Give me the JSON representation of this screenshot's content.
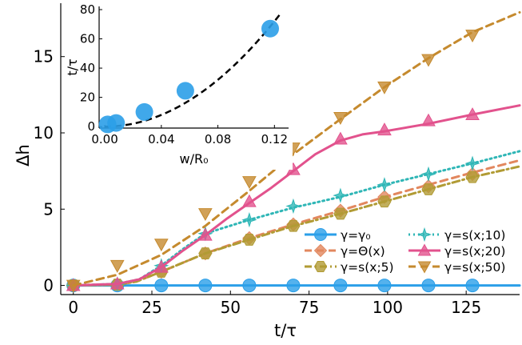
{
  "chart_data": [
    {
      "type": "line",
      "title": "",
      "xlabel": "t/τ",
      "ylabel": "Δh",
      "xlim": [
        -4,
        142
      ],
      "ylim": [
        -0.6,
        18.5
      ],
      "xticks": [
        0,
        25,
        50,
        75,
        100,
        125
      ],
      "yticks": [
        0,
        5,
        10,
        15
      ],
      "grid": false,
      "legend": {
        "placement": "bottom-right",
        "columns": 2
      },
      "series": [
        {
          "name": "γ=γ₀",
          "color": "#2b9fe8",
          "dash": "solid",
          "marker": "circle",
          "line": [
            [
              0,
              0
            ],
            [
              142,
              0
            ]
          ],
          "markers": [
            [
              0,
              0
            ],
            [
              14,
              0
            ],
            [
              28,
              0
            ],
            [
              42,
              0
            ],
            [
              56,
              0
            ],
            [
              70,
              0
            ],
            [
              85,
              0
            ],
            [
              99,
              0
            ],
            [
              113,
              0
            ],
            [
              127,
              0
            ]
          ]
        },
        {
          "name": "γ=Θ(x)",
          "color": "#e2875e",
          "dash": "dashed",
          "marker": "diamond",
          "line": [
            [
              0,
              0
            ],
            [
              14,
              0.05
            ],
            [
              20,
              0.25
            ],
            [
              28,
              0.9
            ],
            [
              35,
              1.5
            ],
            [
              42,
              2.1
            ],
            [
              56,
              3.1
            ],
            [
              70,
              4.0
            ],
            [
              85,
              4.9
            ],
            [
              99,
              5.8
            ],
            [
              113,
              6.6
            ],
            [
              127,
              7.4
            ],
            [
              142,
              8.2
            ]
          ],
          "markers": [
            [
              0,
              0
            ],
            [
              14,
              0.05
            ],
            [
              28,
              0.9
            ],
            [
              42,
              2.1
            ],
            [
              56,
              3.1
            ],
            [
              70,
              4.0
            ],
            [
              85,
              4.9
            ],
            [
              99,
              5.8
            ],
            [
              113,
              6.5
            ],
            [
              127,
              7.3
            ]
          ]
        },
        {
          "name": "γ=s(x;5)",
          "color": "#b19b34",
          "dash": "dashdot",
          "marker": "hexagon",
          "line": [
            [
              0,
              0
            ],
            [
              14,
              0.05
            ],
            [
              20,
              0.25
            ],
            [
              28,
              0.9
            ],
            [
              35,
              1.5
            ],
            [
              42,
              2.1
            ],
            [
              56,
              3.0
            ],
            [
              70,
              3.9
            ],
            [
              85,
              4.7
            ],
            [
              99,
              5.5
            ],
            [
              113,
              6.3
            ],
            [
              127,
              7.1
            ],
            [
              142,
              7.8
            ]
          ],
          "markers": [
            [
              0,
              0
            ],
            [
              14,
              0.05
            ],
            [
              28,
              0.9
            ],
            [
              42,
              2.1
            ],
            [
              56,
              3.0
            ],
            [
              70,
              3.9
            ],
            [
              85,
              4.7
            ],
            [
              99,
              5.5
            ],
            [
              113,
              6.3
            ],
            [
              127,
              7.1
            ]
          ]
        },
        {
          "name": "γ=s(x;10)",
          "color": "#2fb6b6",
          "dash": "dotted",
          "marker": "star",
          "line": [
            [
              0,
              0
            ],
            [
              14,
              0.1
            ],
            [
              21,
              0.4
            ],
            [
              28,
              1.3
            ],
            [
              35,
              2.4
            ],
            [
              42,
              3.4
            ],
            [
              56,
              4.3
            ],
            [
              70,
              5.1
            ],
            [
              85,
              5.8
            ],
            [
              99,
              6.6
            ],
            [
              113,
              7.3
            ],
            [
              127,
              8.0
            ],
            [
              142,
              8.8
            ]
          ],
          "markers": [
            [
              0,
              0
            ],
            [
              14,
              0.1
            ],
            [
              28,
              1.3
            ],
            [
              42,
              3.4
            ],
            [
              56,
              4.3
            ],
            [
              70,
              5.2
            ],
            [
              85,
              5.9
            ],
            [
              99,
              6.6
            ],
            [
              113,
              7.3
            ],
            [
              127,
              8.0
            ]
          ]
        },
        {
          "name": "γ=s(x;20)",
          "color": "#e2528d",
          "dash": "solid",
          "marker": "triangle-up",
          "line": [
            [
              0,
              0
            ],
            [
              14,
              0.1
            ],
            [
              21,
              0.4
            ],
            [
              28,
              1.2
            ],
            [
              35,
              2.3
            ],
            [
              42,
              3.3
            ],
            [
              49,
              4.4
            ],
            [
              56,
              5.4
            ],
            [
              63,
              6.4
            ],
            [
              70,
              7.5
            ],
            [
              77,
              8.6
            ],
            [
              85,
              9.5
            ],
            [
              92,
              9.9
            ],
            [
              99,
              10.1
            ],
            [
              113,
              10.6
            ],
            [
              127,
              11.2
            ],
            [
              142,
              11.8
            ]
          ],
          "markers": [
            [
              0,
              0
            ],
            [
              14,
              0.1
            ],
            [
              28,
              1.2
            ],
            [
              42,
              3.3
            ],
            [
              56,
              5.5
            ],
            [
              70,
              7.6
            ],
            [
              85,
              9.6
            ],
            [
              99,
              10.2
            ],
            [
              113,
              10.8
            ],
            [
              127,
              11.2
            ]
          ]
        },
        {
          "name": "γ=s(x;50)",
          "color": "#c58a2e",
          "dash": "dashed",
          "marker": "triangle-down",
          "line": [
            [
              0,
              0
            ],
            [
              14,
              0.7
            ],
            [
              28,
              2.0
            ],
            [
              42,
              3.9
            ],
            [
              56,
              6.2
            ],
            [
              70,
              8.6
            ],
            [
              85,
              10.9
            ],
            [
              99,
              13.0
            ],
            [
              113,
              14.9
            ],
            [
              127,
              16.6
            ],
            [
              142,
              17.9
            ]
          ],
          "markers": [
            [
              0,
              0
            ],
            [
              14,
              1.3
            ],
            [
              28,
              2.7
            ],
            [
              42,
              4.7
            ],
            [
              56,
              6.8
            ],
            [
              70,
              9.0
            ],
            [
              85,
              11.0
            ],
            [
              99,
              13.0
            ],
            [
              113,
              14.8
            ],
            [
              127,
              16.4
            ]
          ]
        }
      ]
    },
    {
      "type": "scatter",
      "title": "",
      "xlabel": "w/R₀",
      "ylabel": "t/τ",
      "xlim": [
        -0.004,
        0.13
      ],
      "ylim": [
        -1,
        80
      ],
      "xticks": [
        0.0,
        0.04,
        0.08,
        0.12
      ],
      "xtick_labels": [
        "0.00",
        "0.04",
        "0.08",
        "0.12"
      ],
      "yticks": [
        0,
        20,
        40,
        60,
        80
      ],
      "grid": false,
      "series": [
        {
          "name": "",
          "color": "#2b9fe8",
          "marker": "circle",
          "points": [
            [
              0.002,
              1.5
            ],
            [
              0.008,
              2.5
            ],
            [
              0.028,
              10
            ],
            [
              0.057,
              24.5
            ],
            [
              0.117,
              67
            ]
          ]
        },
        {
          "name": "",
          "color": "#000000",
          "dash": "dashed",
          "fit": {
            "form": "a*x^2",
            "a": 5000,
            "x_range": [
              0,
              0.127
            ]
          }
        }
      ]
    }
  ]
}
